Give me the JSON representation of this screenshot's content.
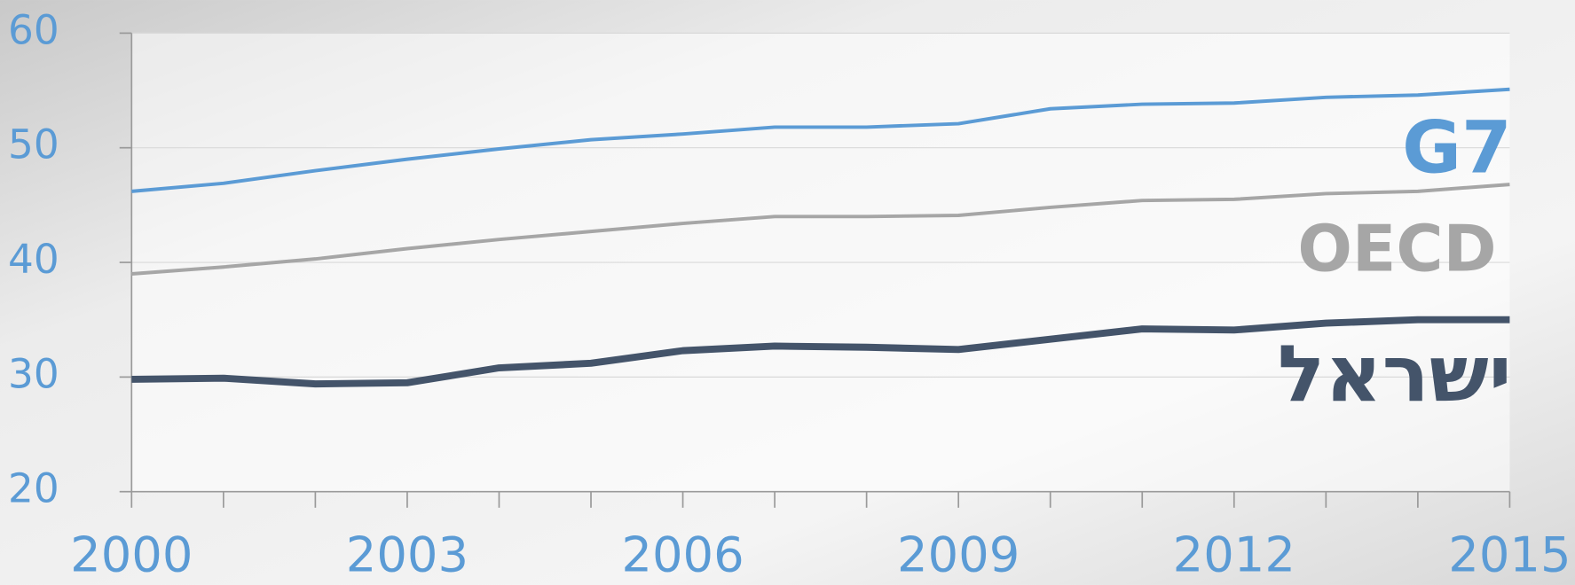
{
  "chart_data": {
    "type": "line",
    "x": [
      2000,
      2001,
      2002,
      2003,
      2004,
      2005,
      2006,
      2007,
      2008,
      2009,
      2010,
      2011,
      2012,
      2013,
      2014,
      2015
    ],
    "series": [
      {
        "name": "G7",
        "color": "#5b9bd5",
        "values": [
          46.2,
          46.9,
          48.0,
          49.0,
          49.9,
          50.7,
          51.2,
          51.8,
          51.8,
          52.1,
          53.4,
          53.8,
          53.9,
          54.4,
          54.6,
          55.1
        ]
      },
      {
        "name": "OECD",
        "color": "#a6a6a6",
        "values": [
          39.0,
          39.6,
          40.3,
          41.2,
          42.0,
          42.7,
          43.4,
          44.0,
          44.0,
          44.1,
          44.8,
          45.4,
          45.5,
          46.0,
          46.2,
          46.8
        ]
      },
      {
        "name": "ישראל",
        "color": "#44546a",
        "values": [
          29.8,
          29.9,
          29.4,
          29.5,
          30.8,
          31.2,
          32.3,
          32.7,
          32.6,
          32.4,
          33.3,
          34.2,
          34.1,
          34.7,
          35.0,
          35.0
        ]
      }
    ],
    "xlim": [
      2000,
      2015
    ],
    "xticks": [
      2000,
      2003,
      2006,
      2009,
      2012,
      2015
    ],
    "ylim": [
      20,
      60
    ],
    "yticks": [
      20,
      30,
      40,
      50,
      60
    ],
    "grid": true
  }
}
